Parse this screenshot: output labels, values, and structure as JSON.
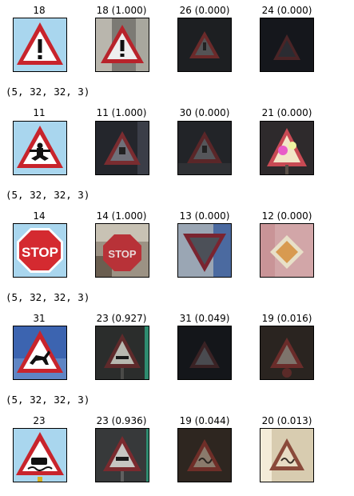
{
  "rows": [
    {
      "titles": [
        "18",
        "18 (1.000)",
        "26 (0.000)",
        "24 (0.000)"
      ]
    },
    {
      "titles": [
        "11",
        "11 (1.000)",
        "30 (0.000)",
        "21 (0.000)"
      ]
    },
    {
      "titles": [
        "14",
        "14 (1.000)",
        "13 (0.000)",
        "12 (0.000)"
      ]
    },
    {
      "titles": [
        "31",
        "23 (0.927)",
        "31 (0.049)",
        "19 (0.016)"
      ]
    },
    {
      "titles": [
        "23",
        "23 (0.936)",
        "19 (0.044)",
        "20 (0.013)"
      ]
    }
  ],
  "shapes": [
    "(5, 32, 32, 3)",
    "(5, 32, 32, 3)",
    "(5, 32, 32, 3)",
    "(5, 32, 32, 3)"
  ],
  "colors": {
    "sign_red": "#c8242c",
    "sky": "#a9d6ee",
    "dark": "#1f2126"
  }
}
